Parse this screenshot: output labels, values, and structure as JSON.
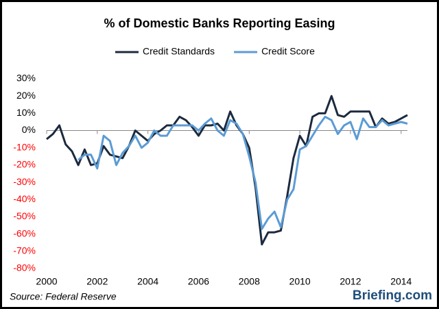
{
  "chart_data": {
    "type": "line",
    "title": "% of Domestic Banks Reporting Easing",
    "x": [
      2000,
      2000.25,
      2000.5,
      2000.75,
      2001,
      2001.25,
      2001.5,
      2001.75,
      2002,
      2002.25,
      2002.5,
      2002.75,
      2003,
      2003.25,
      2003.5,
      2003.75,
      2004,
      2004.25,
      2004.5,
      2004.75,
      2005,
      2005.25,
      2005.5,
      2005.75,
      2006,
      2006.25,
      2006.5,
      2006.75,
      2007,
      2007.25,
      2007.5,
      2007.75,
      2008,
      2008.25,
      2008.5,
      2008.75,
      2009,
      2009.25,
      2009.5,
      2009.75,
      2010,
      2010.25,
      2010.5,
      2010.75,
      2011,
      2011.25,
      2011.5,
      2011.75,
      2012,
      2012.25,
      2012.5,
      2012.75,
      2013,
      2013.25,
      2013.5,
      2013.75,
      2014,
      2014.25
    ],
    "series": [
      {
        "name": "Credit Standards",
        "color": "#1c2a3e",
        "values": [
          -5,
          -2,
          3,
          -8,
          -12,
          -20,
          -11,
          -20,
          -19,
          -9,
          -14,
          -15,
          -16,
          -9,
          0,
          -3,
          -6,
          -2,
          0,
          3,
          3,
          8,
          6,
          2,
          -3,
          3,
          3,
          4,
          0,
          11,
          3,
          -2,
          -10,
          -33,
          -66,
          -59,
          -59,
          -58,
          -38,
          -16,
          -3,
          -9,
          8,
          10,
          10,
          20,
          9,
          8,
          11,
          11,
          11,
          11,
          2,
          7,
          4,
          5,
          7,
          9
        ]
      },
      {
        "name": "Credit Score",
        "color": "#5b9bd5",
        "values": [
          null,
          null,
          null,
          null,
          null,
          -17,
          -14,
          -14,
          -22,
          -3,
          -6,
          -20,
          -13,
          -9,
          -3,
          -10,
          -7,
          0,
          -3,
          -3,
          3,
          3,
          3,
          3,
          0,
          4,
          7,
          0,
          -3,
          6,
          4,
          -2,
          -15,
          -30,
          -57,
          -51,
          -47,
          -56,
          -40,
          -34,
          -11,
          -9,
          -3,
          3,
          8,
          6,
          -2,
          3,
          5,
          -5,
          7,
          2,
          2,
          6,
          3,
          4,
          5,
          4
        ]
      }
    ],
    "xlim": [
      2000,
      2014.25
    ],
    "xticks": [
      2000,
      2002,
      2004,
      2006,
      2008,
      2010,
      2012,
      2014
    ],
    "ylim": [
      -80,
      30
    ],
    "yticks": [
      {
        "value": 30,
        "label": "30%"
      },
      {
        "value": 20,
        "label": "20%"
      },
      {
        "value": 10,
        "label": "10%"
      },
      {
        "value": 0,
        "label": "0%"
      },
      {
        "value": -10,
        "label": "-10%"
      },
      {
        "value": -20,
        "label": "-20%"
      },
      {
        "value": -30,
        "label": "-30%"
      },
      {
        "value": -40,
        "label": "-40%"
      },
      {
        "value": -50,
        "label": "-50%"
      },
      {
        "value": -60,
        "label": "-60%"
      },
      {
        "value": -70,
        "label": "-70%"
      },
      {
        "value": -80,
        "label": "-80%"
      }
    ],
    "negative_tick_color": "#ff0000",
    "grid": false,
    "legend": "top",
    "source": "Source: Federal Reserve",
    "logo": "Briefing.com"
  }
}
